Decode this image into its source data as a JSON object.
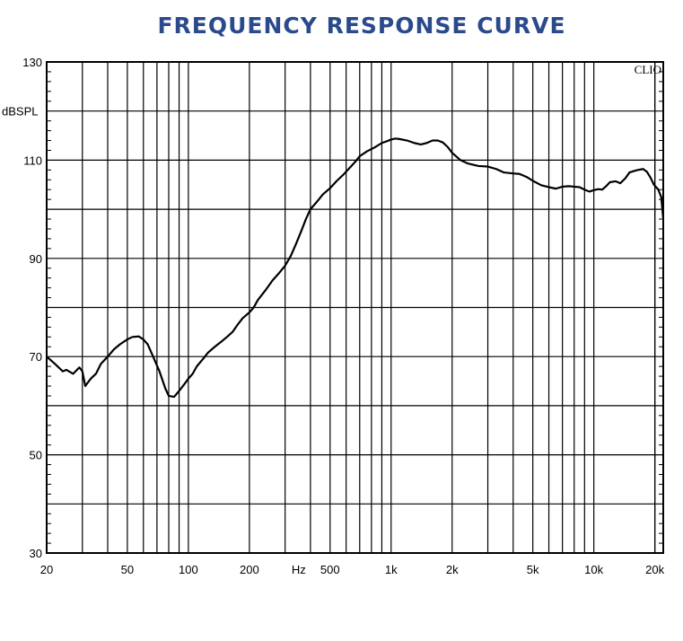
{
  "chart_data": {
    "type": "line",
    "title": "FREQUENCY RESPONSE CURVE",
    "ylabel": "dBSPL",
    "xlabel": "Hz",
    "brand": "CLIO",
    "x_scale": "log",
    "xlim": [
      20,
      22000
    ],
    "ylim": [
      30,
      130
    ],
    "grid": true,
    "y_ticks": [
      30,
      50,
      70,
      90,
      110,
      130
    ],
    "x_ticks": [
      {
        "value": 20,
        "label": "20"
      },
      {
        "value": 50,
        "label": "50"
      },
      {
        "value": 100,
        "label": "100"
      },
      {
        "value": 200,
        "label": "200"
      },
      {
        "value": 500,
        "label": "500"
      },
      {
        "value": 1000,
        "label": "1k"
      },
      {
        "value": 2000,
        "label": "2k"
      },
      {
        "value": 5000,
        "label": "5k"
      },
      {
        "value": 10000,
        "label": "10k"
      },
      {
        "value": 20000,
        "label": "20k"
      }
    ],
    "series": [
      {
        "color": "#000000",
        "points": [
          [
            20,
            70.0
          ],
          [
            22,
            68.5
          ],
          [
            24,
            67.0
          ],
          [
            25,
            67.3
          ],
          [
            27,
            66.5
          ],
          [
            29,
            67.8
          ],
          [
            30,
            67.0
          ],
          [
            31,
            64.0
          ],
          [
            33,
            65.5
          ],
          [
            35,
            66.5
          ],
          [
            36,
            67.5
          ],
          [
            37,
            68.5
          ],
          [
            40,
            70.0
          ],
          [
            43,
            71.5
          ],
          [
            46,
            72.5
          ],
          [
            50,
            73.5
          ],
          [
            53,
            74.0
          ],
          [
            57,
            74.1
          ],
          [
            60,
            73.5
          ],
          [
            63,
            72.5
          ],
          [
            67,
            70.0
          ],
          [
            72,
            67.0
          ],
          [
            77,
            63.5
          ],
          [
            80,
            62.0
          ],
          [
            85,
            61.8
          ],
          [
            90,
            63.0
          ],
          [
            96,
            64.5
          ],
          [
            100,
            65.5
          ],
          [
            105,
            66.5
          ],
          [
            110,
            68.0
          ],
          [
            118,
            69.5
          ],
          [
            125,
            70.8
          ],
          [
            135,
            72.0
          ],
          [
            145,
            73.0
          ],
          [
            155,
            74.0
          ],
          [
            165,
            75.0
          ],
          [
            175,
            76.5
          ],
          [
            185,
            77.8
          ],
          [
            200,
            79.0
          ],
          [
            210,
            80.0
          ],
          [
            220,
            81.5
          ],
          [
            240,
            83.5
          ],
          [
            260,
            85.5
          ],
          [
            280,
            87.0
          ],
          [
            300,
            88.5
          ],
          [
            320,
            90.5
          ],
          [
            340,
            93.0
          ],
          [
            360,
            95.5
          ],
          [
            380,
            98.0
          ],
          [
            400,
            100.0
          ],
          [
            430,
            101.5
          ],
          [
            460,
            103.0
          ],
          [
            500,
            104.3
          ],
          [
            540,
            105.8
          ],
          [
            580,
            107.0
          ],
          [
            620,
            108.3
          ],
          [
            660,
            109.5
          ],
          [
            700,
            110.8
          ],
          [
            760,
            111.8
          ],
          [
            830,
            112.6
          ],
          [
            900,
            113.5
          ],
          [
            960,
            113.9
          ],
          [
            1000,
            114.2
          ],
          [
            1050,
            114.4
          ],
          [
            1100,
            114.3
          ],
          [
            1200,
            114.0
          ],
          [
            1300,
            113.5
          ],
          [
            1400,
            113.2
          ],
          [
            1500,
            113.5
          ],
          [
            1600,
            114.0
          ],
          [
            1700,
            114.0
          ],
          [
            1800,
            113.6
          ],
          [
            1900,
            112.7
          ],
          [
            2000,
            111.5
          ],
          [
            2200,
            110.0
          ],
          [
            2400,
            109.3
          ],
          [
            2700,
            108.8
          ],
          [
            3000,
            108.7
          ],
          [
            3300,
            108.2
          ],
          [
            3600,
            107.5
          ],
          [
            4000,
            107.3
          ],
          [
            4300,
            107.2
          ],
          [
            4700,
            106.5
          ],
          [
            5000,
            105.8
          ],
          [
            5500,
            104.9
          ],
          [
            6000,
            104.5
          ],
          [
            6500,
            104.2
          ],
          [
            7000,
            104.6
          ],
          [
            7500,
            104.7
          ],
          [
            8000,
            104.6
          ],
          [
            8500,
            104.5
          ],
          [
            9000,
            104.0
          ],
          [
            9500,
            103.6
          ],
          [
            10000,
            103.9
          ],
          [
            10500,
            104.1
          ],
          [
            11000,
            104.0
          ],
          [
            11500,
            104.7
          ],
          [
            12000,
            105.5
          ],
          [
            12800,
            105.7
          ],
          [
            13500,
            105.3
          ],
          [
            14300,
            106.3
          ],
          [
            15000,
            107.5
          ],
          [
            15800,
            107.8
          ],
          [
            16500,
            108.0
          ],
          [
            17500,
            108.2
          ],
          [
            18300,
            107.6
          ],
          [
            19000,
            106.5
          ],
          [
            19800,
            105.0
          ],
          [
            20800,
            104.0
          ],
          [
            21500,
            102.5
          ],
          [
            22000,
            98.0
          ]
        ]
      }
    ]
  }
}
